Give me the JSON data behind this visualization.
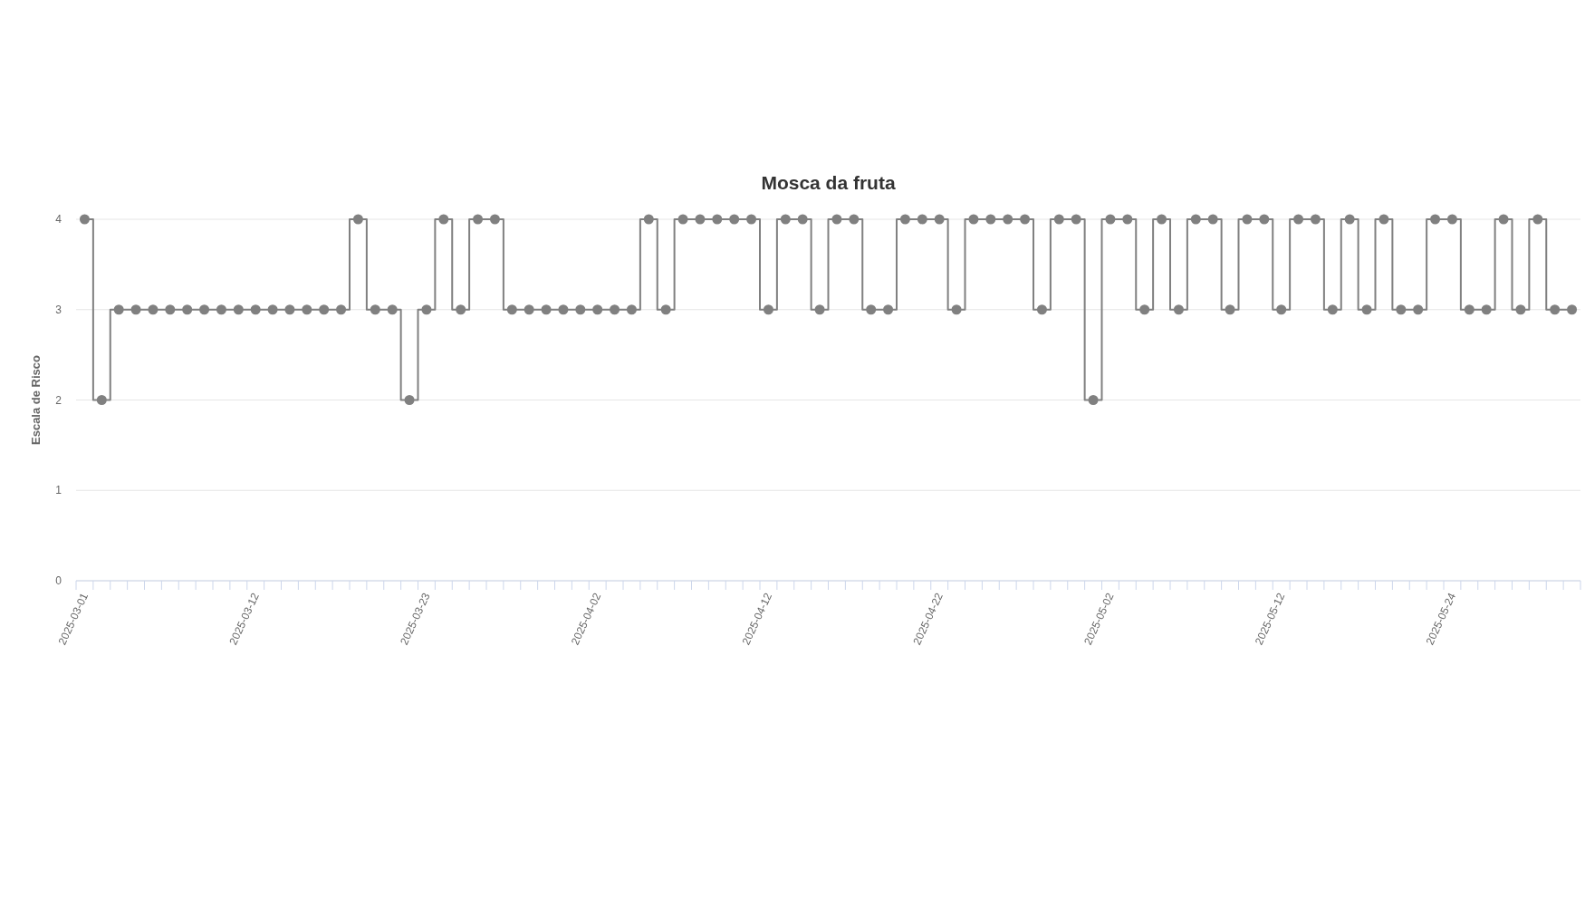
{
  "chart_data": {
    "type": "step",
    "title": "Mosca da fruta",
    "ylabel": "Escala de Risco",
    "categories": [
      "2025-03-01",
      null,
      null,
      null,
      null,
      null,
      null,
      null,
      null,
      null,
      "2025-03-12",
      null,
      null,
      null,
      null,
      null,
      null,
      null,
      null,
      null,
      "2025-03-23",
      null,
      null,
      null,
      null,
      null,
      null,
      null,
      null,
      null,
      "2025-04-02",
      null,
      null,
      null,
      null,
      null,
      null,
      null,
      null,
      null,
      "2025-04-12",
      null,
      null,
      null,
      null,
      null,
      null,
      null,
      null,
      null,
      "2025-04-22",
      null,
      null,
      null,
      null,
      null,
      null,
      null,
      null,
      null,
      "2025-05-02",
      null,
      null,
      null,
      null,
      null,
      null,
      null,
      null,
      null,
      "2025-05-12",
      null,
      null,
      null,
      null,
      null,
      null,
      null,
      null,
      null,
      "2025-05-24",
      null,
      null,
      null,
      null,
      null,
      null,
      null
    ],
    "series": [
      {
        "color": "#808080",
        "values": [
          4,
          2,
          3,
          3,
          3,
          3,
          3,
          3,
          3,
          3,
          3,
          3,
          3,
          3,
          3,
          3,
          4,
          3,
          3,
          2,
          3,
          4,
          3,
          4,
          4,
          3,
          3,
          3,
          3,
          3,
          3,
          3,
          3,
          4,
          3,
          4,
          4,
          4,
          4,
          4,
          3,
          4,
          4,
          3,
          4,
          4,
          3,
          3,
          4,
          4,
          4,
          3,
          4,
          4,
          4,
          4,
          3,
          4,
          4,
          2,
          4,
          4,
          3,
          4,
          3,
          4,
          4,
          3,
          4,
          4,
          3,
          4,
          4,
          3,
          4,
          3,
          4,
          3,
          3,
          4,
          4,
          3,
          3,
          4,
          3,
          4,
          3,
          3
        ]
      }
    ],
    "ylim": [
      0,
      4
    ],
    "yticks": [
      0,
      1,
      2,
      3,
      4
    ],
    "grid": "y",
    "marker": "circle",
    "line_style": "solid"
  }
}
